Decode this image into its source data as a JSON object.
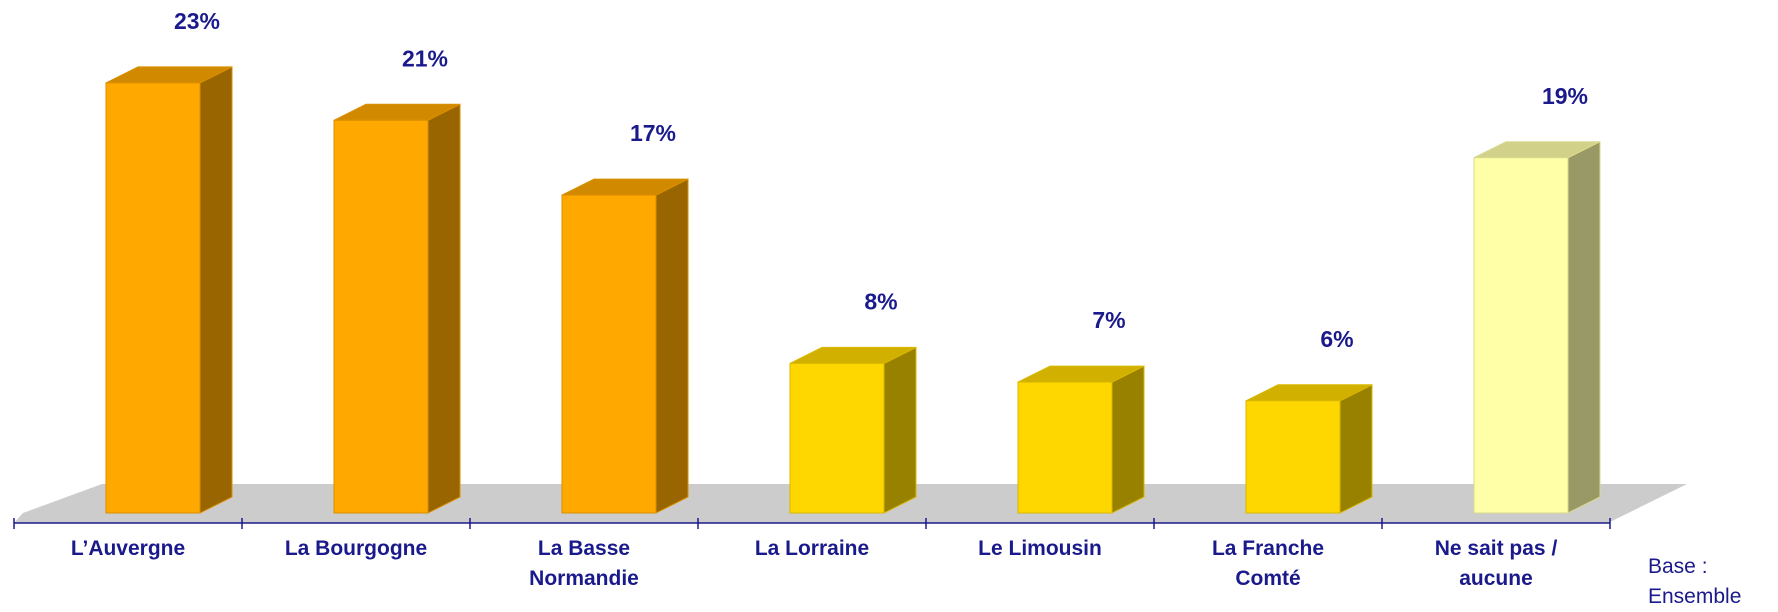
{
  "chart_data": {
    "type": "bar3d",
    "categories": [
      "L’Auvergne",
      "La Bourgogne",
      "La Basse\nNormandie",
      "La Lorraine",
      "Le Limousin",
      "La Franche\nComté",
      "Ne sait pas /\naucune"
    ],
    "values": [
      23,
      21,
      17,
      8,
      7,
      6,
      19
    ],
    "value_labels": [
      "23%",
      "21%",
      "17%",
      "8%",
      "7%",
      "6%",
      "19%"
    ],
    "colors": [
      "#FFA800",
      "#FFA800",
      "#FFA800",
      "#FFD700",
      "#FFD700",
      "#FFD700",
      "#FFFFA8"
    ],
    "annotation": "Base :\nEnsemble"
  }
}
